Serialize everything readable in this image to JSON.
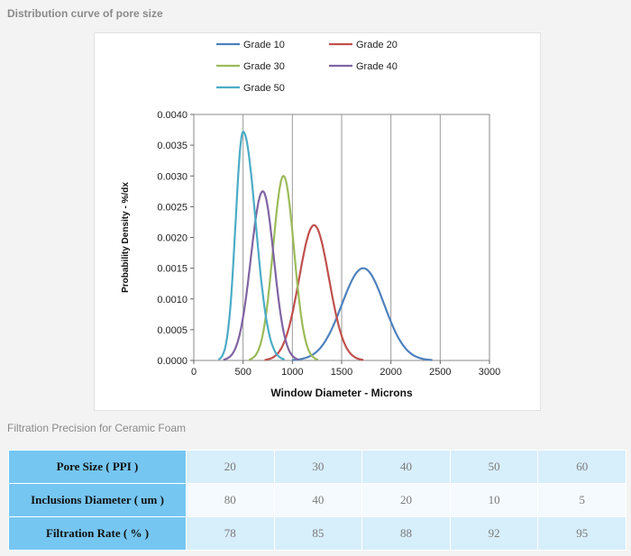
{
  "page": {
    "section_title": "Distribution curve of pore size",
    "subtitle": "Filtration Precision for Ceramic Foam"
  },
  "chart_data": {
    "type": "line",
    "title": "",
    "xlabel": "Window Diameter - Microns",
    "ylabel": "Probability Density - %/dx",
    "xlim": [
      0,
      3000
    ],
    "ylim": [
      0,
      0.004
    ],
    "x_ticks": [
      "0",
      "500",
      "1000",
      "1500",
      "2000",
      "2500",
      "3000"
    ],
    "y_ticks": [
      "0.0000",
      "0.0005",
      "0.0010",
      "0.0015",
      "0.0020",
      "0.0025",
      "0.0030",
      "0.0035",
      "0.0040"
    ],
    "grid": "vertical",
    "legend_position": "top",
    "series": [
      {
        "name": "Grade 10",
        "color": "#4f81bd",
        "mean": 1720,
        "peak": 0.0015,
        "range": [
          1000,
          2420
        ]
      },
      {
        "name": "Grade 20",
        "color": "#c0504d",
        "mean": 1220,
        "peak": 0.0022,
        "range": [
          720,
          1720
        ]
      },
      {
        "name": "Grade 30",
        "color": "#9bbb59",
        "mean": 910,
        "peak": 0.003,
        "range": [
          560,
          1260
        ]
      },
      {
        "name": "Grade 40",
        "color": "#8064a2",
        "mean": 700,
        "peak": 0.00275,
        "range": [
          300,
          1070
        ]
      },
      {
        "name": "Grade 50",
        "color": "#4bacc6",
        "mean": 500,
        "peak": 0.00372,
        "range": [
          250,
          920
        ]
      }
    ]
  },
  "table": {
    "rows": [
      {
        "label": "Pore Size ( PPI )",
        "values": [
          "20",
          "30",
          "40",
          "50",
          "60"
        ]
      },
      {
        "label": "Inclusions Diameter ( um )",
        "values": [
          "80",
          "40",
          "20",
          "10",
          "5"
        ]
      },
      {
        "label": "Filtration Rate ( % )",
        "values": [
          "78",
          "85",
          "88",
          "92",
          "95"
        ]
      }
    ]
  }
}
